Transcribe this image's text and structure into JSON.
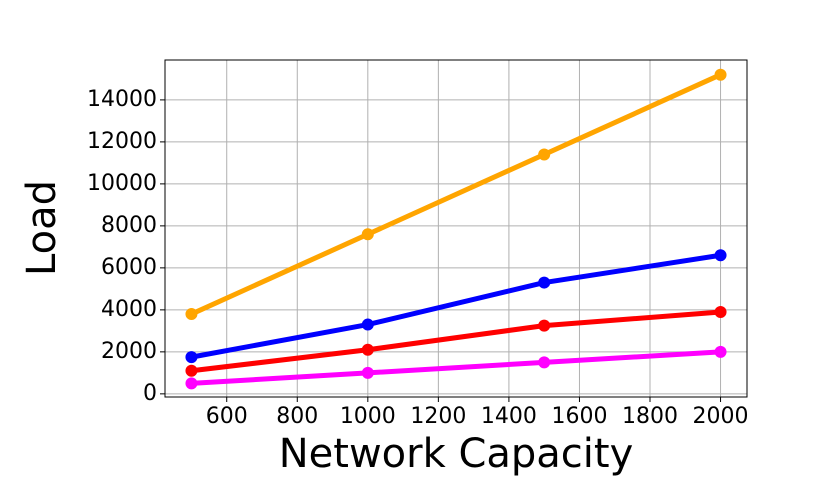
{
  "chart_data": {
    "type": "line",
    "x_label": "Network Capacity",
    "y_label": "Load",
    "x": [
      500,
      1000,
      1500,
      2000
    ],
    "series": [
      {
        "color": "#ffa500",
        "values": [
          3800,
          7600,
          11400,
          15200
        ]
      },
      {
        "color": "#0000ff",
        "values": [
          1750,
          3300,
          5300,
          6600
        ]
      },
      {
        "color": "#ff0000",
        "values": [
          1100,
          2100,
          3250,
          3900
        ]
      },
      {
        "color": "#ff00ff",
        "values": [
          500,
          1000,
          1500,
          2000
        ]
      }
    ],
    "xlim": [
      425,
      2075
    ],
    "ylim": [
      -150,
      15900
    ],
    "xticks": [
      600,
      800,
      1000,
      1200,
      1400,
      1600,
      1800,
      2000
    ],
    "yticks": [
      0,
      2000,
      4000,
      6000,
      8000,
      10000,
      12000,
      14000
    ],
    "grid": true
  }
}
